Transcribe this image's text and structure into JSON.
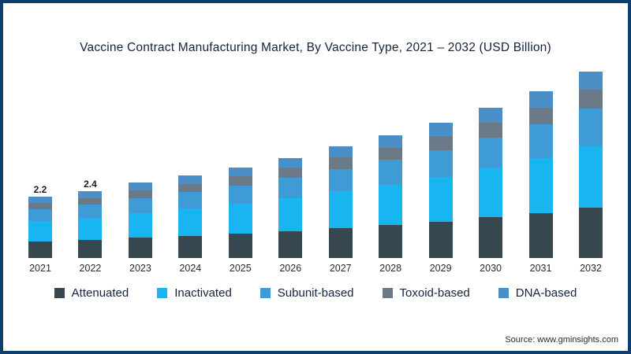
{
  "title": "Vaccine Contract Manufacturing Market, By Vaccine Type, 2021 – 2032 (USD Billion)",
  "source": "Source: www.gminsights.com",
  "chart_data": {
    "type": "bar",
    "stacked": true,
    "title": "Vaccine Contract Manufacturing Market, By Vaccine Type, 2021 – 2032 (USD Billion)",
    "xlabel": "",
    "ylabel": "",
    "grid": false,
    "legend_position": "bottom",
    "ylim": [
      0,
      7.2
    ],
    "categories": [
      "2021",
      "2022",
      "2023",
      "2024",
      "2025",
      "2026",
      "2027",
      "2028",
      "2029",
      "2030",
      "2031",
      "2032"
    ],
    "series": [
      {
        "name": "Attenuated",
        "color": "#37474f",
        "values": [
          0.59,
          0.65,
          0.73,
          0.8,
          0.88,
          0.97,
          1.08,
          1.19,
          1.31,
          1.46,
          1.62,
          1.81
        ]
      },
      {
        "name": "Inactivated",
        "color": "#18b5f0",
        "values": [
          0.73,
          0.79,
          0.89,
          0.97,
          1.07,
          1.19,
          1.32,
          1.45,
          1.6,
          1.78,
          1.98,
          2.21
        ]
      },
      {
        "name": "Subunit-based",
        "color": "#3e9bd5",
        "values": [
          0.44,
          0.48,
          0.54,
          0.59,
          0.65,
          0.72,
          0.8,
          0.88,
          0.97,
          1.08,
          1.2,
          1.34
        ]
      },
      {
        "name": "Toxoid-based",
        "color": "#6b7a86",
        "values": [
          0.22,
          0.24,
          0.27,
          0.3,
          0.33,
          0.36,
          0.4,
          0.44,
          0.49,
          0.54,
          0.6,
          0.67
        ]
      },
      {
        "name": "DNA-based",
        "color": "#4b8fc6",
        "values": [
          0.22,
          0.24,
          0.27,
          0.3,
          0.33,
          0.36,
          0.4,
          0.44,
          0.49,
          0.54,
          0.6,
          0.67
        ]
      }
    ],
    "totals": [
      2.2,
      2.4,
      2.7,
      2.96,
      3.26,
      3.6,
      4.0,
      4.4,
      4.86,
      5.4,
      6.0,
      6.7
    ],
    "value_labels": {
      "2021": "2.2",
      "2022": "2.4"
    },
    "frame_border_color": "#0d3f6e"
  }
}
